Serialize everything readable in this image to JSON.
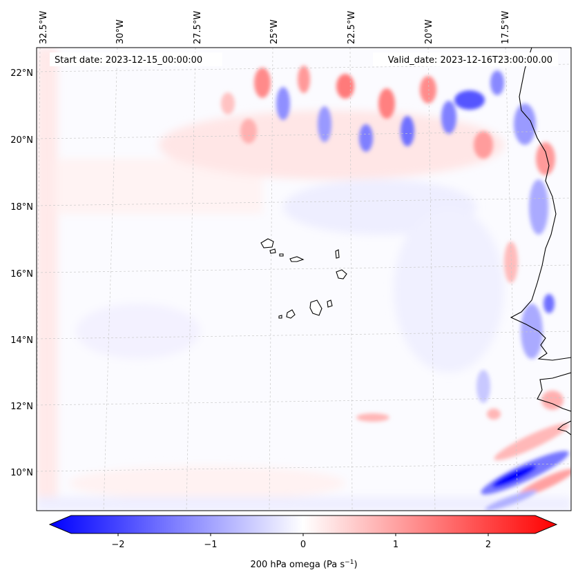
{
  "map": {
    "start_date_text": "Start date: 2023-12-15_00:00:00",
    "valid_date_text": "Valid_date: 2023-12-16T23:00:00.00",
    "lon_ticks": [
      "32.5°W",
      "30°W",
      "27.5°W",
      "25°W",
      "22.5°W",
      "20°W",
      "17.5°W"
    ],
    "lat_ticks": [
      "22°N",
      "20°N",
      "18°N",
      "16°N",
      "14°N",
      "12°N",
      "10°N"
    ],
    "field_colors": {
      "negative": "#0000ff",
      "neutral": "#ffffff",
      "positive": "#ff0000",
      "coast": "#000000"
    }
  },
  "colorbar": {
    "label_main": "200 hPa omega (Pa s",
    "label_sup": "−1",
    "label_end": ")",
    "ticks": [
      "−2",
      "−1",
      "0",
      "1",
      "2"
    ],
    "tick_values": [
      -2,
      -1,
      0,
      1,
      2
    ],
    "range": [
      -2.6,
      2.6
    ]
  }
}
